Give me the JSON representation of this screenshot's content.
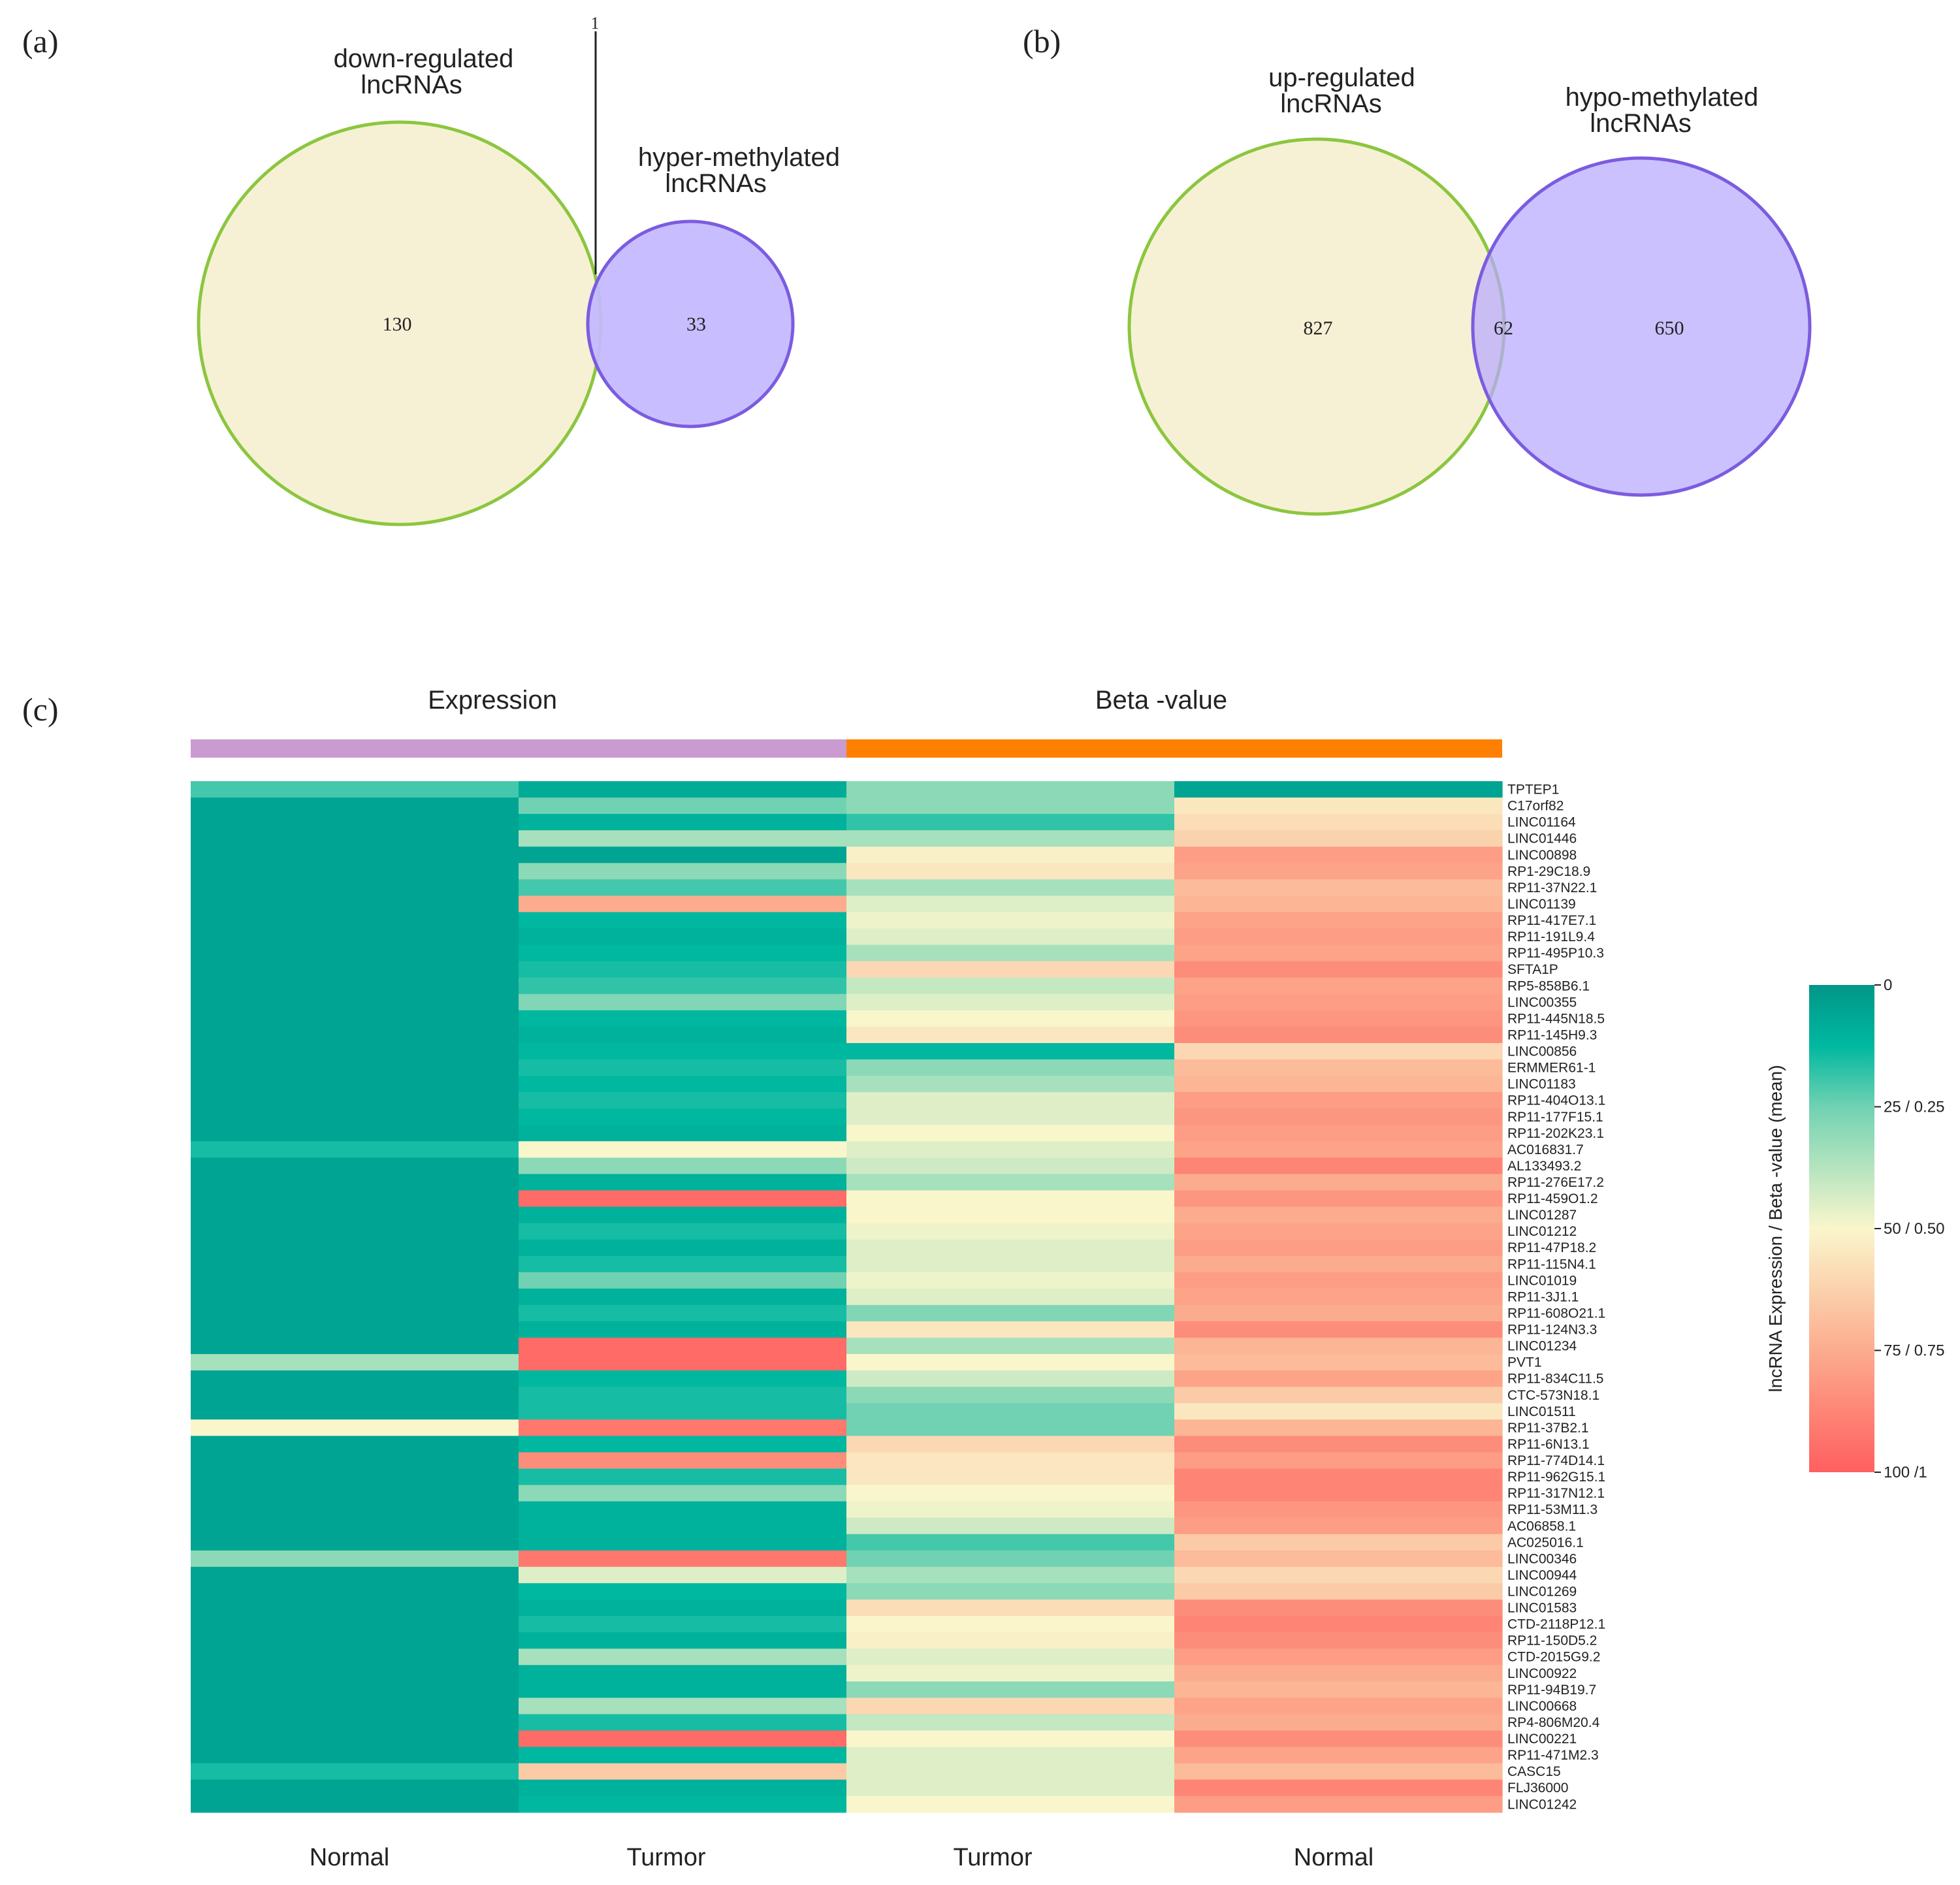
{
  "panel_labels": {
    "a": "(a)",
    "b": "(b)",
    "c": "(c)"
  },
  "colors": {
    "set_a_fill": "#f6f1d4",
    "set_a_stroke": "#8cc63f",
    "set_b_fill": "#c3b8ff",
    "set_b_stroke": "#7b5ce0",
    "group_expression": "#c99bd1",
    "group_beta": "#ff8000"
  },
  "chart_data": [
    {
      "type": "venn",
      "panel": "(a)",
      "sets": [
        {
          "name": "down-regulated\nlncRNAs",
          "count": 130
        },
        {
          "name": "hyper-methylated\nlncRNAs",
          "count": 33
        }
      ],
      "intersection": 1
    },
    {
      "type": "venn",
      "panel": "(b)",
      "sets": [
        {
          "name": "up-regulated\nlncRNAs",
          "count": 827
        },
        {
          "name": "hypo-methylated\nlncRNAs",
          "count": 650
        }
      ],
      "intersection": 62
    },
    {
      "type": "heatmap",
      "panel": "(c)",
      "groups": [
        {
          "name": "Expression",
          "columns": [
            "Normal",
            "Turmor"
          ]
        },
        {
          "name": "Beta -value",
          "columns": [
            "Turmor",
            "Normal"
          ]
        }
      ],
      "columns": [
        "Normal",
        "Turmor",
        "Turmor",
        "Normal"
      ],
      "rows": [
        "TPTEP1",
        "C17orf82",
        "LINC01164",
        "LINC01446",
        "LINC00898",
        "RP1-29C18.9",
        "RP11-37N22.1",
        "LINC01139",
        "RP11-417E7.1",
        "RP11-191L9.4",
        "RP11-495P10.3",
        "SFTA1P",
        "RP5-858B6.1",
        "LINC00355",
        "RP11-445N18.5",
        "RP11-145H9.3",
        "LINC00856",
        "ERMMER61-1",
        "LINC01183",
        "RP11-404O13.1",
        "RP11-177F15.1",
        "RP11-202K23.1",
        "AC016831.7",
        "AL133493.2",
        "RP11-276E17.2",
        "RP11-459O1.2",
        "LINC01287",
        "LINC01212",
        "RP11-47P18.2",
        "RP11-115N4.1",
        "LINC01019",
        "RP11-3J1.1",
        "RP11-608O21.1",
        "RP11-124N3.3",
        "LINC01234",
        "PVT1",
        "RP11-834C11.5",
        "CTC-573N18.1",
        "LINC01511",
        "RP11-37B2.1",
        "RP11-6N13.1",
        "RP11-774D14.1",
        "RP11-962G15.1",
        "RP11-317N12.1",
        "RP11-53M11.3",
        "AC06858.1",
        "AC025016.1",
        "LINC00346",
        "LINC00944",
        "LINC01269",
        "LINC01583",
        "CTD-2118P12.1",
        "RP11-150D5.2",
        "CTD-2015G9.2",
        "LINC00922",
        "RP11-94B19.7",
        "LINC00668",
        "RP4-806M20.4",
        "LINC00221",
        "RP11-471M2.3",
        "CASC15",
        "FLJ36000",
        "LINC01242"
      ],
      "value_range": [
        0,
        100
      ],
      "values": [
        [
          20,
          8,
          30,
          5
        ],
        [
          5,
          25,
          30,
          55
        ],
        [
          5,
          10,
          18,
          58
        ],
        [
          5,
          35,
          35,
          62
        ],
        [
          5,
          5,
          52,
          80
        ],
        [
          5,
          30,
          55,
          78
        ],
        [
          5,
          20,
          35,
          70
        ],
        [
          5,
          75,
          45,
          72
        ],
        [
          5,
          12,
          48,
          78
        ],
        [
          5,
          10,
          45,
          80
        ],
        [
          5,
          12,
          35,
          78
        ],
        [
          5,
          15,
          60,
          85
        ],
        [
          5,
          18,
          40,
          78
        ],
        [
          5,
          28,
          45,
          80
        ],
        [
          5,
          12,
          50,
          82
        ],
        [
          5,
          10,
          55,
          85
        ],
        [
          5,
          12,
          12,
          60
        ],
        [
          5,
          15,
          30,
          70
        ],
        [
          5,
          12,
          35,
          72
        ],
        [
          5,
          15,
          45,
          80
        ],
        [
          5,
          12,
          45,
          82
        ],
        [
          5,
          10,
          50,
          80
        ],
        [
          15,
          50,
          45,
          78
        ],
        [
          5,
          30,
          42,
          88
        ],
        [
          5,
          10,
          35,
          75
        ],
        [
          5,
          96,
          50,
          82
        ],
        [
          5,
          10,
          50,
          75
        ],
        [
          5,
          15,
          48,
          78
        ],
        [
          5,
          10,
          45,
          80
        ],
        [
          5,
          15,
          45,
          75
        ],
        [
          5,
          25,
          48,
          80
        ],
        [
          5,
          10,
          45,
          78
        ],
        [
          5,
          15,
          28,
          75
        ],
        [
          5,
          10,
          55,
          85
        ],
        [
          5,
          96,
          35,
          72
        ],
        [
          35,
          96,
          50,
          70
        ],
        [
          5,
          12,
          42,
          78
        ],
        [
          5,
          15,
          30,
          65
        ],
        [
          5,
          15,
          25,
          55
        ],
        [
          50,
          92,
          25,
          72
        ],
        [
          5,
          12,
          60,
          85
        ],
        [
          5,
          85,
          55,
          80
        ],
        [
          5,
          15,
          55,
          88
        ],
        [
          5,
          30,
          50,
          88
        ],
        [
          5,
          10,
          48,
          82
        ],
        [
          5,
          10,
          42,
          80
        ],
        [
          5,
          10,
          20,
          65
        ],
        [
          30,
          92,
          25,
          70
        ],
        [
          5,
          45,
          35,
          60
        ],
        [
          5,
          12,
          30,
          65
        ],
        [
          5,
          10,
          58,
          85
        ],
        [
          5,
          15,
          50,
          88
        ],
        [
          5,
          10,
          52,
          85
        ],
        [
          5,
          35,
          45,
          80
        ],
        [
          5,
          10,
          48,
          75
        ],
        [
          5,
          10,
          30,
          72
        ],
        [
          5,
          35,
          60,
          78
        ],
        [
          5,
          15,
          40,
          75
        ],
        [
          5,
          96,
          50,
          85
        ],
        [
          5,
          12,
          45,
          78
        ],
        [
          15,
          65,
          45,
          70
        ],
        [
          5,
          10,
          45,
          88
        ],
        [
          5,
          12,
          50,
          80
        ]
      ],
      "legend": {
        "title": "lncRNA  Expression / Beta -value (mean)",
        "ticks": [
          "0",
          "25 / 0.25",
          "50 / 0.50",
          "75 / 0.75",
          "100 /1"
        ]
      }
    }
  ]
}
